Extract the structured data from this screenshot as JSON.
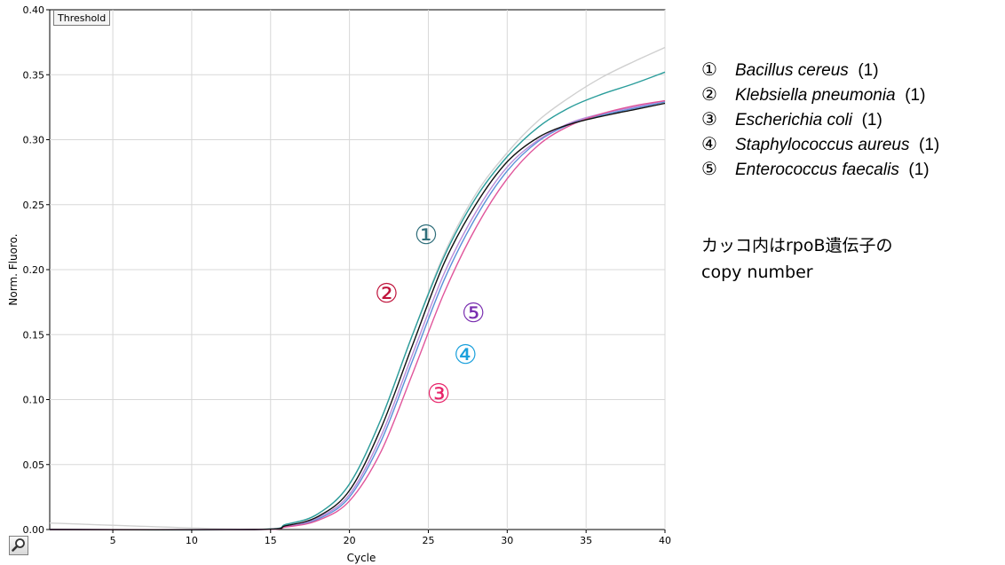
{
  "chart_data": {
    "type": "line",
    "title": "",
    "xlabel": "Cycle",
    "ylabel": "Norm. Fluoro.",
    "xlim": [
      1,
      40
    ],
    "ylim": [
      0,
      0.4
    ],
    "xticks": [
      5,
      10,
      15,
      20,
      25,
      30,
      35,
      40
    ],
    "xtick_labels": [
      "5",
      "10",
      "15",
      "20",
      "25",
      "30",
      "35",
      "40"
    ],
    "yticks": [
      0,
      0.05,
      0.1,
      0.15,
      0.2,
      0.25,
      0.3,
      0.35,
      0.4
    ],
    "ytick_labels": [
      "0.00",
      "0.05",
      "0.10",
      "0.15",
      "0.20",
      "0.25",
      "0.30",
      "0.35",
      "0.40"
    ],
    "grid": true,
    "series": [
      {
        "label": "①",
        "color": "#2a9d9b",
        "x": [
          1,
          14,
          16,
          18,
          20,
          22,
          24,
          26,
          28,
          30,
          32,
          34,
          36,
          38,
          40
        ],
        "values": [
          0.0,
          0.0,
          0.004,
          0.012,
          0.035,
          0.085,
          0.15,
          0.21,
          0.255,
          0.287,
          0.31,
          0.325,
          0.335,
          0.343,
          0.352
        ]
      },
      {
        "label": "②",
        "color": "#111111",
        "x": [
          1,
          14,
          16,
          18,
          20,
          22,
          24,
          26,
          28,
          30,
          32,
          34,
          36,
          38,
          40
        ],
        "values": [
          0.0,
          0.0,
          0.003,
          0.01,
          0.03,
          0.078,
          0.142,
          0.205,
          0.25,
          0.283,
          0.302,
          0.312,
          0.318,
          0.323,
          0.328
        ]
      },
      {
        "label": "③",
        "color": "#e0559b",
        "x": [
          1,
          14,
          16,
          18,
          20,
          22,
          24,
          26,
          28,
          30,
          32,
          34,
          36,
          38,
          40
        ],
        "values": [
          0.0,
          0.0,
          0.002,
          0.007,
          0.022,
          0.06,
          0.12,
          0.182,
          0.232,
          0.27,
          0.296,
          0.311,
          0.32,
          0.326,
          0.33
        ]
      },
      {
        "label": "④",
        "color": "#5a8fd8",
        "x": [
          1,
          14,
          16,
          18,
          20,
          22,
          24,
          26,
          28,
          30,
          32,
          34,
          36,
          38,
          40
        ],
        "values": [
          0.0,
          0.0,
          0.0025,
          0.008,
          0.025,
          0.068,
          0.13,
          0.192,
          0.24,
          0.276,
          0.299,
          0.312,
          0.319,
          0.324,
          0.329
        ]
      },
      {
        "label": "⑤",
        "color": "#b88ad8",
        "x": [
          1,
          14,
          16,
          18,
          20,
          22,
          24,
          26,
          28,
          30,
          32,
          34,
          36,
          38,
          40
        ],
        "values": [
          0.0,
          0.0,
          0.0027,
          0.009,
          0.027,
          0.072,
          0.135,
          0.197,
          0.244,
          0.279,
          0.3,
          0.313,
          0.32,
          0.325,
          0.33
        ]
      },
      {
        "label": "",
        "color": "#d0d0d0",
        "x": [
          1,
          14,
          16,
          18,
          20,
          22,
          24,
          26,
          28,
          30,
          32,
          34,
          36,
          38,
          40
        ],
        "values": [
          0.005,
          0.0,
          0.004,
          0.012,
          0.035,
          0.085,
          0.15,
          0.212,
          0.258,
          0.29,
          0.315,
          0.333,
          0.348,
          0.36,
          0.371
        ]
      }
    ],
    "annotations": [
      {
        "text": "①",
        "x": 25,
        "y": 0.225,
        "color": "#2f6e7a"
      },
      {
        "text": "②",
        "x": 22.5,
        "y": 0.18,
        "color": "#c0143c"
      },
      {
        "text": "⑤",
        "x": 28,
        "y": 0.165,
        "color": "#7a2fb0"
      },
      {
        "text": "④",
        "x": 27.5,
        "y": 0.133,
        "color": "#1aa0dc"
      },
      {
        "text": "③",
        "x": 25.8,
        "y": 0.103,
        "color": "#e8246a"
      }
    ]
  },
  "controls": {
    "threshold_label": "Threshold",
    "zoom_icon": "magnifier-icon"
  },
  "legend": [
    {
      "num": "①",
      "name": "Bacillus cereus",
      "count": "(1)"
    },
    {
      "num": "②",
      "name": "Klebsiella pneumonia",
      "count": "(1)"
    },
    {
      "num": "③",
      "name": "Escherichia coli",
      "count": "(1)"
    },
    {
      "num": "④",
      "name": "Staphylococcus aureus",
      "count": "(1)"
    },
    {
      "num": "⑤",
      "name": "Enterococcus faecalis",
      "count": "(1)"
    }
  ],
  "note": {
    "line1": "カッコ内はrpoB遺伝子の",
    "line2": "copy number"
  }
}
